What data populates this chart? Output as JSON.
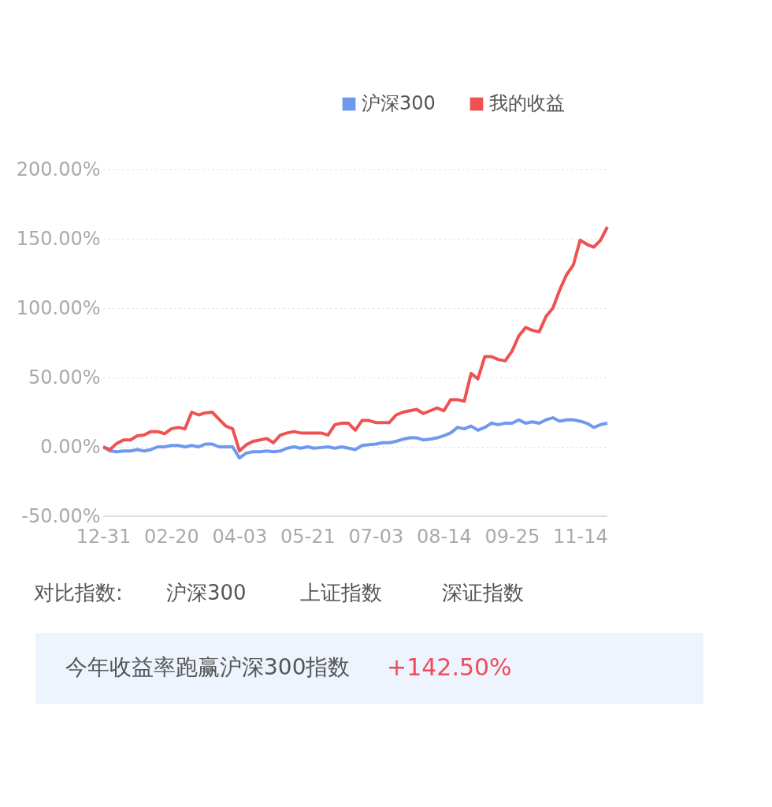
{
  "chart_data": {
    "type": "line",
    "categories": [
      "12-31",
      null,
      null,
      null,
      null,
      null,
      null,
      null,
      null,
      null,
      "02-20",
      null,
      null,
      null,
      null,
      null,
      null,
      null,
      null,
      null,
      "04-03",
      null,
      null,
      null,
      null,
      null,
      null,
      null,
      null,
      null,
      "05-21",
      null,
      null,
      null,
      null,
      null,
      null,
      null,
      null,
      null,
      "07-03",
      null,
      null,
      null,
      null,
      null,
      null,
      null,
      null,
      null,
      "08-14",
      null,
      null,
      null,
      null,
      null,
      null,
      null,
      null,
      null,
      "09-25",
      null,
      null,
      null,
      null,
      null,
      null,
      null,
      null,
      null,
      "11-14",
      null,
      null,
      null,
      null
    ],
    "series": [
      {
        "name": "沪深300",
        "color": "#6f99ef",
        "values": [
          0,
          -3,
          -3.5,
          -3,
          -3,
          -2,
          -3,
          -2,
          0,
          0,
          1,
          1,
          0,
          1,
          0,
          2,
          2,
          0,
          0,
          0,
          -8,
          -4.5,
          -3.5,
          -3.5,
          -3,
          -3.5,
          -3,
          -1,
          0,
          -1,
          0,
          -1,
          -0.5,
          0,
          -1,
          0,
          -1,
          -2,
          1,
          1.5,
          2,
          3,
          3,
          4,
          5.5,
          6.5,
          6.5,
          5,
          5.5,
          6.5,
          8,
          10,
          14,
          13,
          15,
          12,
          14,
          17,
          16,
          17,
          17,
          19.5,
          17,
          18,
          17,
          19.5,
          21,
          18.5,
          19.5,
          19.5,
          18.5,
          17,
          14,
          16,
          17
        ]
      },
      {
        "name": "我的收益",
        "color": "#ee5253",
        "values": [
          0,
          -2,
          2.5,
          5,
          5,
          8,
          8.5,
          11,
          11,
          9.5,
          13,
          14,
          13,
          25,
          23,
          24.5,
          25,
          20,
          15,
          13,
          -3,
          1.5,
          4,
          5,
          6,
          3,
          8.5,
          10,
          11,
          10,
          10,
          10,
          10,
          8.5,
          16,
          17,
          17,
          12,
          19,
          19,
          17.5,
          17.5,
          17.5,
          23,
          25,
          26,
          27,
          24,
          26,
          28,
          26,
          34,
          34,
          33,
          53,
          49,
          65,
          65,
          63,
          62,
          69,
          80,
          86,
          84,
          83,
          94,
          100,
          113,
          124,
          131,
          149,
          146,
          144,
          149,
          158.5
        ]
      }
    ],
    "ylim": [
      -50,
      200
    ],
    "yticks": [
      {
        "value": -50,
        "label": "-50.00%"
      },
      {
        "value": 0,
        "label": "0.00%"
      },
      {
        "value": 50,
        "label": "50.00%"
      },
      {
        "value": 100,
        "label": "100.00%"
      },
      {
        "value": 150,
        "label": "150.00%"
      },
      {
        "value": 200,
        "label": "200.00%"
      }
    ],
    "grid": "y",
    "legend": "top right",
    "marker": "none",
    "line_style": "solid",
    "annotations": [
      "对比指数:",
      "沪深300",
      "上证指数",
      "深证指数",
      "今年收益率跑赢沪深300指数",
      "+142.50%"
    ]
  }
}
